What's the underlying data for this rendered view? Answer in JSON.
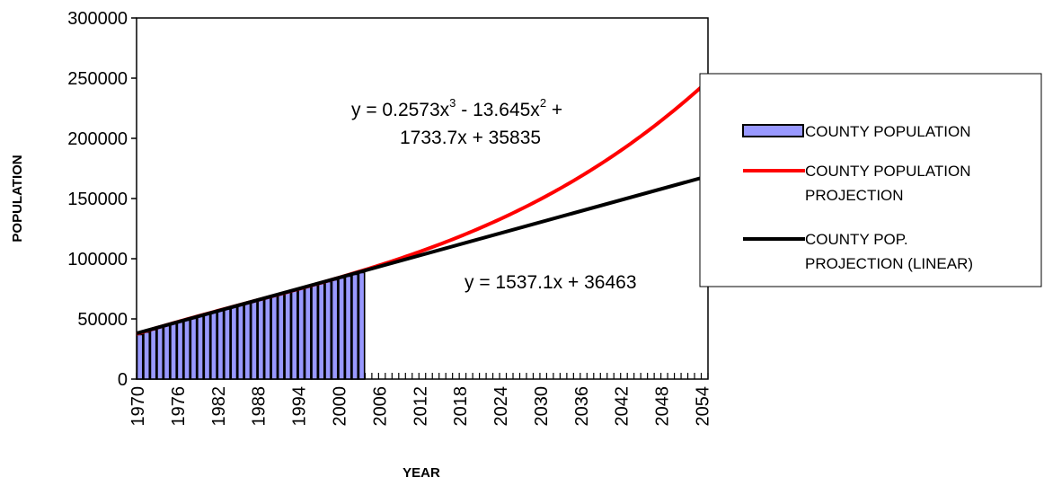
{
  "chart_data": {
    "type": "bar",
    "xlabel": "YEAR",
    "ylabel": "POPULATION",
    "ylim": [
      0,
      300000
    ],
    "y_ticks": [
      "0",
      "50000",
      "100000",
      "150000",
      "200000",
      "250000",
      "300000"
    ],
    "x_range": [
      1970,
      2055
    ],
    "x_tick_labels": [
      "1970",
      "1976",
      "1982",
      "1988",
      "1994",
      "2000",
      "2006",
      "2012",
      "2018",
      "2024",
      "2030",
      "2036",
      "2042",
      "2048",
      "2054"
    ],
    "bar_color": "#9999ff",
    "series": [
      {
        "name": "COUNTY POPULATION",
        "type": "bar",
        "x": [
          1970,
          1971,
          1972,
          1973,
          1974,
          1975,
          1976,
          1977,
          1978,
          1979,
          1980,
          1981,
          1982,
          1983,
          1984,
          1985,
          1986,
          1987,
          1988,
          1989,
          1990,
          1991,
          1992,
          1993,
          1994,
          1995,
          1996,
          1997,
          1998,
          1999,
          2000,
          2001,
          2002,
          2003
        ],
        "values": [
          37000,
          39000,
          41000,
          43000,
          44500,
          46000,
          47500,
          49000,
          50500,
          52000,
          54500,
          56000,
          57000,
          58500,
          60000,
          61500,
          63000,
          64500,
          66000,
          67500,
          69000,
          70500,
          72000,
          73500,
          75000,
          76500,
          78000,
          79500,
          81000,
          82500,
          84000,
          85500,
          87000,
          88500
        ],
        "color": "#9999ff"
      },
      {
        "name": "COUNTY POPULATION PROJECTION",
        "type": "line",
        "equation_text": {
          "part1": "y = 0.2573x",
          "exp1": "3",
          "part2": " - 13.645x",
          "exp2": "2",
          "part3": " +",
          "line2": "1733.7x + 35835"
        },
        "coefficients": {
          "a3": 0.2573,
          "a2": -13.645,
          "a1": 1733.7,
          "a0": 35835
        },
        "color": "#ff0000"
      },
      {
        "name": "COUNTY POP. PROJECTION (LINEAR)",
        "type": "line",
        "equation_text": "y = 1537.1x + 36463",
        "coefficients": {
          "slope": 1537.1,
          "intercept": 36463
        },
        "color": "#000000"
      }
    ],
    "legend": {
      "placement": "right",
      "entries": [
        {
          "lines": [
            "COUNTY POPULATION"
          ],
          "marker": "bar",
          "color": "#9999ff"
        },
        {
          "lines": [
            "COUNTY POPULATION",
            "PROJECTION"
          ],
          "marker": "line",
          "color": "#ff0000"
        },
        {
          "lines": [
            "COUNTY POP.",
            "PROJECTION (LINEAR)"
          ],
          "marker": "line",
          "color": "#000000"
        }
      ]
    },
    "grid": false
  }
}
